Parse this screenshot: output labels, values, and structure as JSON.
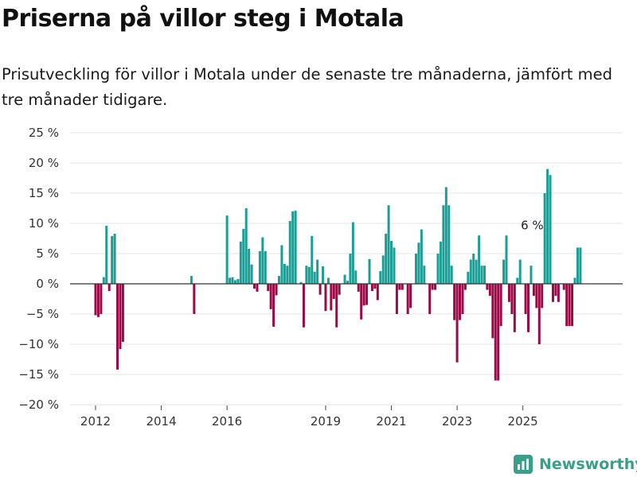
{
  "title": "Priserna på villor steg i Motala",
  "subtitle": "Prisutveckling för villor i Motala under de senaste tre månaderna, jämfört med tre månader tidigare.",
  "brand": {
    "name": "Newsworthy",
    "icon": "newsworthy-logo-icon"
  },
  "colors": {
    "positive": "#1a9e96",
    "negative": "#9b0a46",
    "grid": "#e3e3e3",
    "zero_line": "#333333",
    "brand": "#3a9f8a"
  },
  "chart_data": {
    "type": "bar",
    "title": "Priserna på villor steg i Motala",
    "xlabel": "",
    "ylabel": "",
    "ylim": [
      -20,
      25
    ],
    "yticks": [
      25,
      20,
      15,
      10,
      5,
      0,
      -5,
      -10,
      -15,
      -20
    ],
    "ytick_labels": [
      "25 %",
      "20 %",
      "15 %",
      "10 %",
      "5 %",
      "0 %",
      "−5 %",
      "−10 %",
      "−15 %",
      "−20 %"
    ],
    "xticks": [
      "2012",
      "2014",
      "2016",
      "2019",
      "2021",
      "2023",
      "2025"
    ],
    "x_start": "2012-01",
    "grid": true,
    "legend": "none",
    "annotation": {
      "text": "6 %",
      "x": "2025-05"
    },
    "series": [
      {
        "values": [
          -5.2,
          -5.5,
          -5.0,
          1.1,
          9.6,
          -1.2,
          7.9,
          8.3,
          -14.2,
          -10.8,
          -9.6,
          null,
          null,
          null,
          null,
          null,
          null,
          null,
          null,
          null,
          null,
          null,
          null,
          null,
          null,
          null,
          null,
          null,
          null,
          null,
          null,
          null,
          null,
          null,
          null,
          1.3,
          -5.0,
          null,
          null,
          null,
          null,
          null,
          null,
          null,
          null,
          null,
          null,
          null,
          11.3,
          1.0,
          1.1,
          0.6,
          0.8,
          7.0,
          9.1,
          12.5,
          5.8,
          3.2,
          -0.8,
          -1.3,
          5.4,
          7.7,
          5.4,
          -1.2,
          -4.2,
          -7.1,
          -1.9,
          1.3,
          6.4,
          3.3,
          3.0,
          10.4,
          12.0,
          12.1,
          null,
          0.3,
          -7.2,
          3.0,
          2.8,
          7.9,
          2.0,
          4.0,
          -1.8,
          2.9,
          -4.5,
          1.0,
          -4.4,
          -2.5,
          -7.2,
          -1.8,
          null,
          1.5,
          0.5,
          5.0,
          10.2,
          2.2,
          -1.3,
          -5.9,
          -3.6,
          -3.5,
          4.1,
          -1.2,
          -0.8,
          -2.7,
          2.1,
          4.7,
          8.3,
          13.0,
          7.1,
          6.0,
          -5.0,
          -1.0,
          -1.0,
          null,
          -5.0,
          -4.0,
          null,
          5.0,
          6.8,
          9.0,
          3.0,
          null,
          -5.0,
          -1.0,
          -1.0,
          5.0,
          7.0,
          13.0,
          16.0,
          13.0,
          3.0,
          -6.0,
          -13.0,
          -6.0,
          -5.0,
          -1.0,
          2.0,
          4.0,
          5.0,
          4.0,
          8.0,
          3.0,
          3.0,
          -1.0,
          -2.0,
          -9.0,
          -16.0,
          -16.0,
          -7.0,
          4.0,
          8.0,
          -3.0,
          -5.0,
          -8.0,
          1.0,
          4.0,
          null,
          -5.0,
          -8.0,
          3.0,
          -2.0,
          -4.0,
          -10.0,
          -4.0,
          15.0,
          19.0,
          18.0,
          -3.0,
          -2.0,
          -3.0,
          null,
          -1.0,
          -7.0,
          -7.0,
          -7.0,
          1.0,
          6.0,
          6.0
        ]
      }
    ]
  }
}
